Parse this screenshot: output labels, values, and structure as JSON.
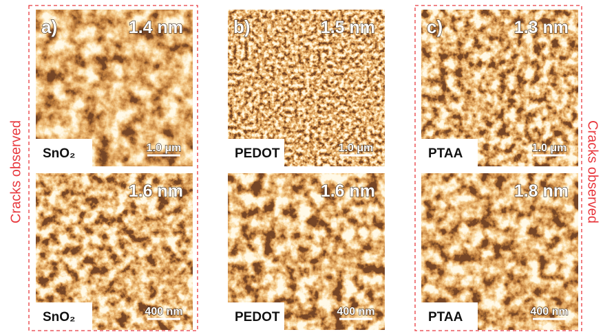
{
  "side_labels": [
    "Cracks observed",
    "Cracks observed"
  ],
  "panels": [
    {
      "label": "a)",
      "top": {
        "roughness": "1.4 nm",
        "material": "SnO₂",
        "scale_bar": "1.0 μm"
      },
      "bottom": {
        "roughness": "1.6 nm",
        "material": "SnO₂",
        "scale_bar": "400 nm"
      }
    },
    {
      "label": "b)",
      "top": {
        "roughness": "1.5 nm",
        "material": "PEDOT",
        "scale_bar": "1.0 μm"
      },
      "bottom": {
        "roughness": "1.6 nm",
        "material": "PEDOT",
        "scale_bar": "400 nm"
      }
    },
    {
      "label": "c)",
      "top": {
        "roughness": "1.3 nm",
        "material": "PTAA",
        "scale_bar": "1.0 μm"
      },
      "bottom": {
        "roughness": "1.8 nm",
        "material": "PTAA",
        "scale_bar": "400 nm"
      }
    }
  ]
}
